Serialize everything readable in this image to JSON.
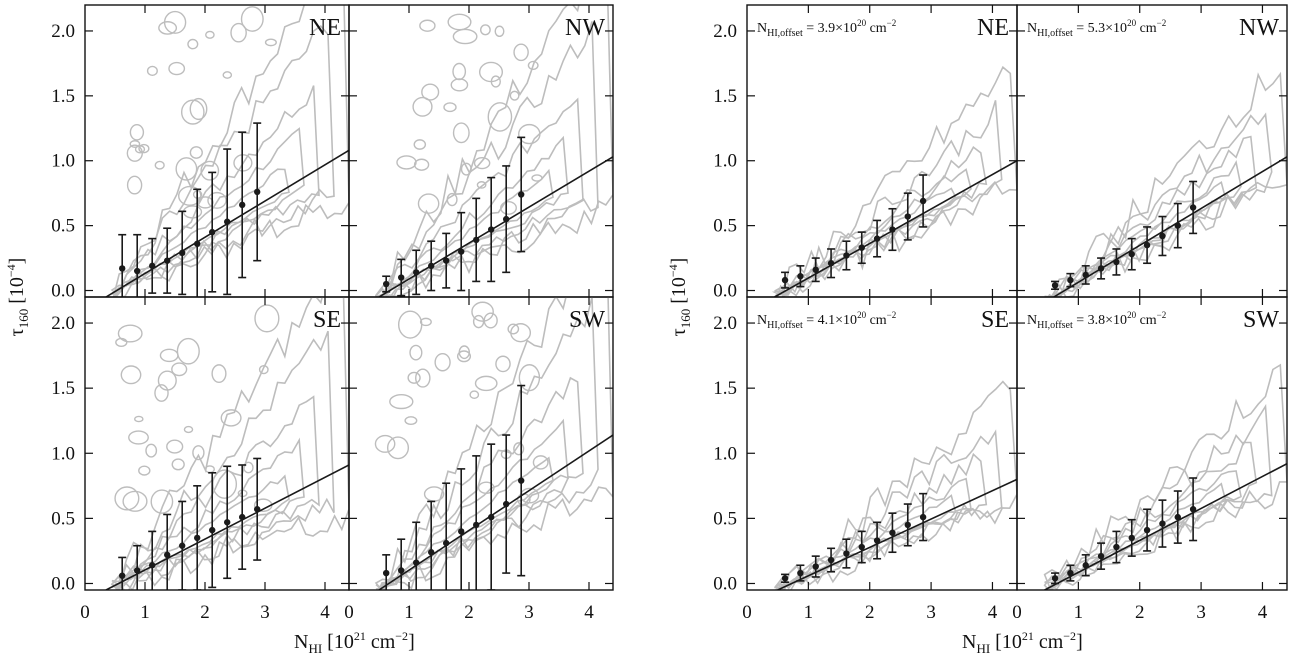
{
  "chart_data": [
    {
      "type": "scatter",
      "figure_block": "left",
      "x_label": {
        "main": "N",
        "sub": "HI",
        "rest": " [10",
        "sup": "21",
        "tail": " cm",
        "sup2": "−2",
        "end": "]"
      },
      "y_label": {
        "main": "τ",
        "sub": "160",
        "rest": " [10",
        "sup": "−4",
        "end": "]"
      },
      "xlim": [
        0,
        4.4
      ],
      "ylim": [
        -0.05,
        2.2
      ],
      "xticks": [
        "0",
        "1",
        "2",
        "3",
        "4"
      ],
      "yticks": [
        "0.0",
        "0.5",
        "1.0",
        "1.5",
        "2.0"
      ],
      "xtick_values": [
        0,
        1,
        2,
        3,
        4
      ],
      "ytick_values": [
        0.0,
        0.5,
        1.0,
        1.5,
        2.0
      ],
      "panels": [
        {
          "label": "NE",
          "offset_label": "",
          "points": [
            {
              "x": 0.62,
              "y": 0.17,
              "err": 0.26
            },
            {
              "x": 0.87,
              "y": 0.15,
              "err": 0.28
            },
            {
              "x": 1.12,
              "y": 0.19,
              "err": 0.21
            },
            {
              "x": 1.37,
              "y": 0.23,
              "err": 0.25
            },
            {
              "x": 1.62,
              "y": 0.29,
              "err": 0.32
            },
            {
              "x": 1.87,
              "y": 0.36,
              "err": 0.42
            },
            {
              "x": 2.12,
              "y": 0.45,
              "err": 0.46
            },
            {
              "x": 2.37,
              "y": 0.53,
              "err": 0.56
            },
            {
              "x": 2.62,
              "y": 0.66,
              "err": 0.56
            },
            {
              "x": 2.87,
              "y": 0.76,
              "err": 0.53
            }
          ],
          "fit_line": [
            [
              0.35,
              -0.05
            ],
            [
              4.4,
              1.08
            ]
          ]
        },
        {
          "label": "NW",
          "offset_label": "",
          "points": [
            {
              "x": 0.62,
              "y": 0.05,
              "err": 0.06
            },
            {
              "x": 0.87,
              "y": 0.1,
              "err": 0.14
            },
            {
              "x": 1.12,
              "y": 0.14,
              "err": 0.17
            },
            {
              "x": 1.37,
              "y": 0.19,
              "err": 0.19
            },
            {
              "x": 1.62,
              "y": 0.23,
              "err": 0.21
            },
            {
              "x": 1.87,
              "y": 0.3,
              "err": 0.3
            },
            {
              "x": 2.12,
              "y": 0.39,
              "err": 0.32
            },
            {
              "x": 2.37,
              "y": 0.47,
              "err": 0.4
            },
            {
              "x": 2.62,
              "y": 0.55,
              "err": 0.41
            },
            {
              "x": 2.87,
              "y": 0.74,
              "err": 0.44
            }
          ],
          "fit_line": [
            [
              0.5,
              -0.05
            ],
            [
              4.4,
              1.03
            ]
          ]
        },
        {
          "label": "SE",
          "offset_label": "",
          "points": [
            {
              "x": 0.62,
              "y": 0.06,
              "err": 0.14
            },
            {
              "x": 0.87,
              "y": 0.1,
              "err": 0.19
            },
            {
              "x": 1.12,
              "y": 0.14,
              "err": 0.26
            },
            {
              "x": 1.37,
              "y": 0.22,
              "err": 0.31
            },
            {
              "x": 1.62,
              "y": 0.29,
              "err": 0.34
            },
            {
              "x": 1.87,
              "y": 0.35,
              "err": 0.4
            },
            {
              "x": 2.12,
              "y": 0.41,
              "err": 0.44
            },
            {
              "x": 2.37,
              "y": 0.47,
              "err": 0.43
            },
            {
              "x": 2.62,
              "y": 0.51,
              "err": 0.4
            },
            {
              "x": 2.87,
              "y": 0.57,
              "err": 0.39
            }
          ],
          "fit_line": [
            [
              0.35,
              -0.05
            ],
            [
              4.4,
              0.91
            ]
          ]
        },
        {
          "label": "SW",
          "offset_label": "",
          "points": [
            {
              "x": 0.62,
              "y": 0.08,
              "err": 0.14
            },
            {
              "x": 0.87,
              "y": 0.1,
              "err": 0.24
            },
            {
              "x": 1.12,
              "y": 0.16,
              "err": 0.31
            },
            {
              "x": 1.37,
              "y": 0.24,
              "err": 0.39
            },
            {
              "x": 1.62,
              "y": 0.31,
              "err": 0.46
            },
            {
              "x": 1.87,
              "y": 0.4,
              "err": 0.48
            },
            {
              "x": 2.12,
              "y": 0.45,
              "err": 0.53
            },
            {
              "x": 2.37,
              "y": 0.51,
              "err": 0.56
            },
            {
              "x": 2.62,
              "y": 0.61,
              "err": 0.53
            },
            {
              "x": 2.87,
              "y": 0.79,
              "err": 0.73
            }
          ],
          "fit_line": [
            [
              0.5,
              -0.05
            ],
            [
              4.4,
              1.14
            ]
          ]
        }
      ]
    },
    {
      "type": "scatter",
      "figure_block": "right",
      "x_label": {
        "main": "N",
        "sub": "HI",
        "rest": " [10",
        "sup": "21",
        "tail": " cm",
        "sup2": "−2",
        "end": "]"
      },
      "y_label": {
        "main": "τ",
        "sub": "160",
        "rest": " [10",
        "sup": "−4",
        "end": "]"
      },
      "xlim": [
        0,
        4.4
      ],
      "ylim": [
        -0.05,
        2.2
      ],
      "xticks": [
        "0",
        "1",
        "2",
        "3",
        "4"
      ],
      "yticks": [
        "0.0",
        "0.5",
        "1.0",
        "1.5",
        "2.0"
      ],
      "xtick_values": [
        0,
        1,
        2,
        3,
        4
      ],
      "ytick_values": [
        0.0,
        0.5,
        1.0,
        1.5,
        2.0
      ],
      "panels": [
        {
          "label": "NE",
          "offset_label": {
            "main": "N",
            "sub": "HI,offset",
            "rest": " = 3.9×10",
            "sup": "20",
            "tail": " cm",
            "sup2": "−2"
          },
          "points": [
            {
              "x": 0.62,
              "y": 0.08,
              "err": 0.06
            },
            {
              "x": 0.87,
              "y": 0.11,
              "err": 0.08
            },
            {
              "x": 1.12,
              "y": 0.16,
              "err": 0.09
            },
            {
              "x": 1.37,
              "y": 0.21,
              "err": 0.11
            },
            {
              "x": 1.62,
              "y": 0.27,
              "err": 0.11
            },
            {
              "x": 1.87,
              "y": 0.33,
              "err": 0.12
            },
            {
              "x": 2.12,
              "y": 0.4,
              "err": 0.14
            },
            {
              "x": 2.37,
              "y": 0.47,
              "err": 0.16
            },
            {
              "x": 2.62,
              "y": 0.57,
              "err": 0.18
            },
            {
              "x": 2.87,
              "y": 0.69,
              "err": 0.2
            }
          ],
          "fit_line": [
            [
              0.45,
              -0.05
            ],
            [
              4.4,
              1.0
            ]
          ]
        },
        {
          "label": "NW",
          "offset_label": {
            "main": "N",
            "sub": "HI,offset",
            "rest": " = 5.3×10",
            "sup": "20",
            "tail": " cm",
            "sup2": "−2"
          },
          "points": [
            {
              "x": 0.62,
              "y": 0.04,
              "err": 0.03
            },
            {
              "x": 0.87,
              "y": 0.08,
              "err": 0.05
            },
            {
              "x": 1.12,
              "y": 0.12,
              "err": 0.07
            },
            {
              "x": 1.37,
              "y": 0.17,
              "err": 0.08
            },
            {
              "x": 1.62,
              "y": 0.22,
              "err": 0.1
            },
            {
              "x": 1.87,
              "y": 0.28,
              "err": 0.12
            },
            {
              "x": 2.12,
              "y": 0.35,
              "err": 0.14
            },
            {
              "x": 2.37,
              "y": 0.42,
              "err": 0.15
            },
            {
              "x": 2.62,
              "y": 0.5,
              "err": 0.17
            },
            {
              "x": 2.87,
              "y": 0.64,
              "err": 0.2
            }
          ],
          "fit_line": [
            [
              0.6,
              -0.05
            ],
            [
              4.4,
              1.03
            ]
          ]
        },
        {
          "label": "SE",
          "offset_label": {
            "main": "N",
            "sub": "HI,offset",
            "rest": " = 4.1×10",
            "sup": "20",
            "tail": " cm",
            "sup2": "−2"
          },
          "points": [
            {
              "x": 0.62,
              "y": 0.04,
              "err": 0.03
            },
            {
              "x": 0.87,
              "y": 0.08,
              "err": 0.06
            },
            {
              "x": 1.12,
              "y": 0.13,
              "err": 0.08
            },
            {
              "x": 1.37,
              "y": 0.18,
              "err": 0.09
            },
            {
              "x": 1.62,
              "y": 0.23,
              "err": 0.11
            },
            {
              "x": 1.87,
              "y": 0.28,
              "err": 0.12
            },
            {
              "x": 2.12,
              "y": 0.33,
              "err": 0.14
            },
            {
              "x": 2.37,
              "y": 0.39,
              "err": 0.15
            },
            {
              "x": 2.62,
              "y": 0.45,
              "err": 0.16
            },
            {
              "x": 2.87,
              "y": 0.51,
              "err": 0.18
            }
          ],
          "fit_line": [
            [
              0.5,
              -0.05
            ],
            [
              4.4,
              0.8
            ]
          ]
        },
        {
          "label": "SW",
          "offset_label": {
            "main": "N",
            "sub": "HI,offset",
            "rest": " = 3.8×10",
            "sup": "20",
            "tail": " cm",
            "sup2": "−2"
          },
          "points": [
            {
              "x": 0.62,
              "y": 0.04,
              "err": 0.04
            },
            {
              "x": 0.87,
              "y": 0.08,
              "err": 0.06
            },
            {
              "x": 1.12,
              "y": 0.14,
              "err": 0.08
            },
            {
              "x": 1.37,
              "y": 0.21,
              "err": 0.1
            },
            {
              "x": 1.62,
              "y": 0.28,
              "err": 0.12
            },
            {
              "x": 1.87,
              "y": 0.35,
              "err": 0.14
            },
            {
              "x": 2.12,
              "y": 0.41,
              "err": 0.16
            },
            {
              "x": 2.37,
              "y": 0.46,
              "err": 0.18
            },
            {
              "x": 2.62,
              "y": 0.51,
              "err": 0.2
            },
            {
              "x": 2.87,
              "y": 0.57,
              "err": 0.24
            }
          ],
          "fit_line": [
            [
              0.45,
              -0.05
            ],
            [
              4.4,
              0.92
            ]
          ]
        }
      ]
    }
  ],
  "colors": {
    "points": "#1a1a1a",
    "fit_line": "#1a1a1a",
    "contours": "#bdbdbd",
    "frame": "#111111"
  }
}
